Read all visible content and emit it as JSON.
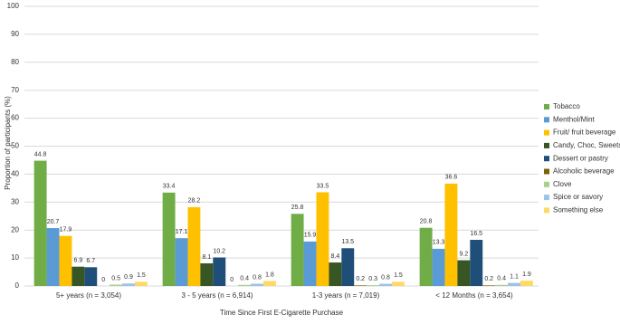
{
  "chart_data": {
    "type": "bar",
    "y_label": "Proportion of participants (%)",
    "x_label": "Time Since First E-Cigarette Purchase",
    "categories": [
      "5+ years (n = 3,054)",
      "3 - 5 years (n = 6,914)",
      "1-3 years (n = 7,019)",
      "< 12 Months (n = 3,654)"
    ],
    "series": [
      {
        "name": "Tobacco",
        "color": "#70ad47",
        "values": [
          44.8,
          33.4,
          25.8,
          20.8
        ]
      },
      {
        "name": "Menthol/Mint",
        "color": "#5b9bd5",
        "values": [
          20.7,
          17.1,
          15.9,
          13.3
        ]
      },
      {
        "name": "Fruit/ fruit beverage",
        "color": "#ffc000",
        "values": [
          17.9,
          28.2,
          33.5,
          36.6
        ]
      },
      {
        "name": "Candy, Choc, Sweets",
        "color": "#375623",
        "values": [
          6.9,
          8.1,
          8.4,
          9.2
        ]
      },
      {
        "name": "Dessert or pastry",
        "color": "#1f4e79",
        "values": [
          6.7,
          10.2,
          13.5,
          16.5
        ]
      },
      {
        "name": "Alcoholic beverage",
        "color": "#806000",
        "values": [
          0,
          0,
          0.2,
          0.2
        ]
      },
      {
        "name": "Clove",
        "color": "#a9d18e",
        "values": [
          0.5,
          0.4,
          0.3,
          0.4
        ]
      },
      {
        "name": "Spice or savory",
        "color": "#9dc3e6",
        "values": [
          0.9,
          0.8,
          0.8,
          1.1
        ]
      },
      {
        "name": "Something else",
        "color": "#ffd966",
        "values": [
          1.5,
          1.8,
          1.5,
          1.9
        ]
      }
    ],
    "ylim": [
      0,
      100
    ],
    "yticks": [
      0,
      10,
      20,
      30,
      40,
      50,
      60,
      70,
      80,
      90,
      100
    ],
    "grid": true,
    "legend": "right"
  }
}
